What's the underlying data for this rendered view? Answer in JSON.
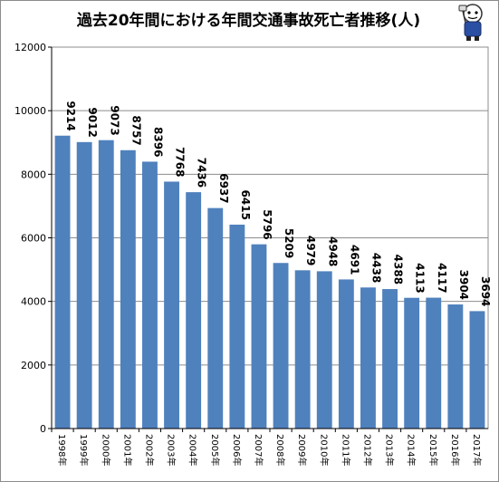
{
  "chart_data": {
    "type": "bar",
    "title": "過去20年間における年間交通事故死亡者推移(人)",
    "categories": [
      "1998年",
      "1999年",
      "2000年",
      "2001年",
      "2002年",
      "2003年",
      "2004年",
      "2005年",
      "2006年",
      "2007年",
      "2008年",
      "2009年",
      "2010年",
      "2011年",
      "2012年",
      "2013年",
      "2014年",
      "2015年",
      "2016年",
      "2017年"
    ],
    "values": [
      9214,
      9012,
      9073,
      8757,
      8396,
      7768,
      7436,
      6937,
      6415,
      5796,
      5209,
      4979,
      4948,
      4691,
      4438,
      4388,
      4113,
      4117,
      3904,
      3694
    ],
    "ylim": [
      0,
      12000
    ],
    "yticks": [
      0,
      2000,
      4000,
      6000,
      8000,
      10000,
      12000
    ],
    "grid": true,
    "bar_color": "#4f81bd",
    "gridline_color": "#8c8c8c"
  }
}
